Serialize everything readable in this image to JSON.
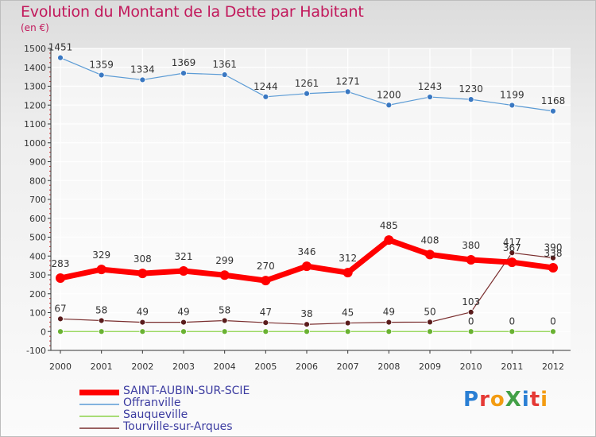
{
  "title": "Evolution du Montant de la Dette par Habitant",
  "unit_label": "(en €)",
  "logo": {
    "text": "ProXiti",
    "letter_colors": [
      "#2a7fd4",
      "#e53935",
      "#f39c12",
      "#43a047",
      "#2a7fd4",
      "#e53935",
      "#f39c12"
    ]
  },
  "chart_data": {
    "type": "line",
    "title": "Evolution du Montant de la Dette par Habitant",
    "ylabel": "(en €)",
    "xlabel": "",
    "x": [
      "2000",
      "2001",
      "2002",
      "2003",
      "2004",
      "2005",
      "2006",
      "2007",
      "2008",
      "2009",
      "2010",
      "2011",
      "2012"
    ],
    "ylim": [
      -100,
      1500
    ],
    "yticks": [
      -100,
      0,
      100,
      200,
      300,
      400,
      500,
      600,
      700,
      800,
      900,
      1000,
      1100,
      1200,
      1300,
      1400,
      1500
    ],
    "grid": true,
    "legend_position": "bottom-left",
    "series": [
      {
        "name": "SAINT-AUBIN-SUR-SCIE",
        "color": "#ff0000",
        "values": [
          283,
          329,
          308,
          321,
          299,
          270,
          346,
          312,
          485,
          408,
          380,
          367,
          338
        ],
        "labels": [
          "283",
          "329",
          "308",
          "321",
          "299",
          "270",
          "346",
          "312",
          "485",
          "408",
          "380",
          "367",
          "338"
        ]
      },
      {
        "name": "Offranville",
        "color": "#5b9bd5",
        "values": [
          1451,
          1359,
          1334,
          1369,
          1361,
          1244,
          1261,
          1271,
          1200,
          1243,
          1230,
          1199,
          1168
        ],
        "labels": [
          "1451",
          "1359",
          "1334",
          "1369",
          "1361",
          "1244",
          "1261",
          "1271",
          "1200",
          "1243",
          "1230",
          "1199",
          "1168"
        ]
      },
      {
        "name": "Sauqueville",
        "color": "#8cd24a",
        "values": [
          0,
          0,
          0,
          0,
          0,
          0,
          0,
          0,
          0,
          0,
          0,
          0,
          0
        ],
        "labels": [
          "",
          "",
          "",
          "",
          "",
          "",
          "",
          "",
          "",
          "",
          "0",
          "0",
          "0"
        ]
      },
      {
        "name": "Tourville-sur-Arques",
        "color": "#7a2e2e",
        "values": [
          67,
          58,
          49,
          49,
          58,
          47,
          38,
          45,
          49,
          50,
          103,
          417,
          390
        ],
        "labels": [
          "67",
          "58",
          "49",
          "49",
          "58",
          "47",
          "38",
          "45",
          "49",
          "50",
          "103",
          "417",
          "390"
        ]
      }
    ]
  }
}
